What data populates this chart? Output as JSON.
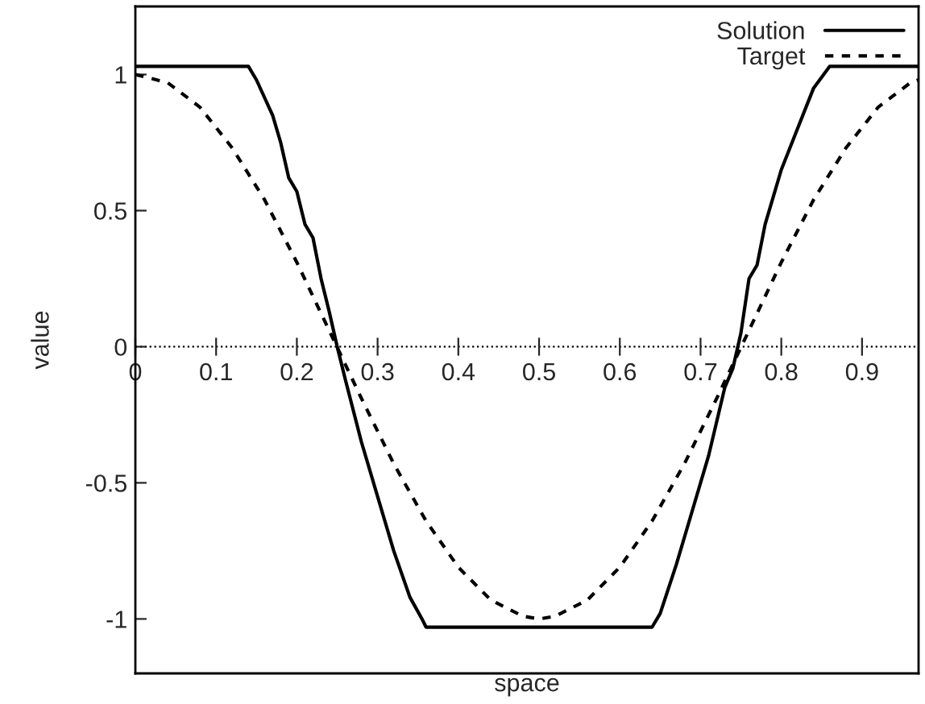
{
  "chart_data": {
    "type": "line",
    "xlabel": "space",
    "ylabel": "value",
    "xlim": [
      0,
      0.97
    ],
    "ylim": [
      -1.2,
      1.25
    ],
    "xticks": [
      0,
      0.1,
      0.2,
      0.3,
      0.4,
      0.5,
      0.6,
      0.7,
      0.8,
      0.9
    ],
    "yticks": [
      {
        "value": -1,
        "label": "-1"
      },
      {
        "value": -0.5,
        "label": "-0.5"
      },
      0,
      0.5,
      1
    ],
    "ref_lines": [
      {
        "axis": "y",
        "value": 0,
        "line_style": "dotted",
        "color": "#000000"
      }
    ],
    "grid": false,
    "legend": "top right",
    "marker": "none",
    "series": [
      {
        "name": "Solution",
        "color": "#000000",
        "line_style": "solid",
        "x": [
          0,
          0.14,
          0.15,
          0.17,
          0.18,
          0.19,
          0.2,
          0.21,
          0.22,
          0.23,
          0.24,
          0.25,
          0.26,
          0.28,
          0.3,
          0.32,
          0.34,
          0.355,
          0.36,
          0.64,
          0.65,
          0.67,
          0.69,
          0.71,
          0.73,
          0.74,
          0.75,
          0.76,
          0.77,
          0.78,
          0.8,
          0.82,
          0.84,
          0.86,
          0.97
        ],
        "values": [
          1.03,
          1.03,
          0.98,
          0.85,
          0.75,
          0.62,
          0.57,
          0.45,
          0.4,
          0.25,
          0.13,
          0.0,
          -0.12,
          -0.35,
          -0.55,
          -0.75,
          -0.92,
          -1.0,
          -1.03,
          -1.03,
          -0.98,
          -0.8,
          -0.6,
          -0.4,
          -0.15,
          -0.08,
          0.05,
          0.25,
          0.3,
          0.45,
          0.65,
          0.8,
          0.95,
          1.03,
          1.03
        ]
      },
      {
        "name": "Target",
        "color": "#000000",
        "line_style": "dashed",
        "x": [
          0,
          0.04,
          0.08,
          0.12,
          0.16,
          0.2,
          0.24,
          0.28,
          0.32,
          0.36,
          0.4,
          0.44,
          0.48,
          0.5,
          0.52,
          0.56,
          0.6,
          0.64,
          0.68,
          0.72,
          0.76,
          0.8,
          0.84,
          0.88,
          0.92,
          0.96,
          0.97
        ],
        "values": [
          1,
          0.97,
          0.88,
          0.73,
          0.54,
          0.31,
          0.06,
          -0.19,
          -0.43,
          -0.64,
          -0.81,
          -0.93,
          -0.99,
          -1,
          -0.99,
          -0.93,
          -0.81,
          -0.64,
          -0.43,
          -0.19,
          0.06,
          0.31,
          0.54,
          0.73,
          0.88,
          0.97,
          0.98
        ]
      }
    ]
  }
}
